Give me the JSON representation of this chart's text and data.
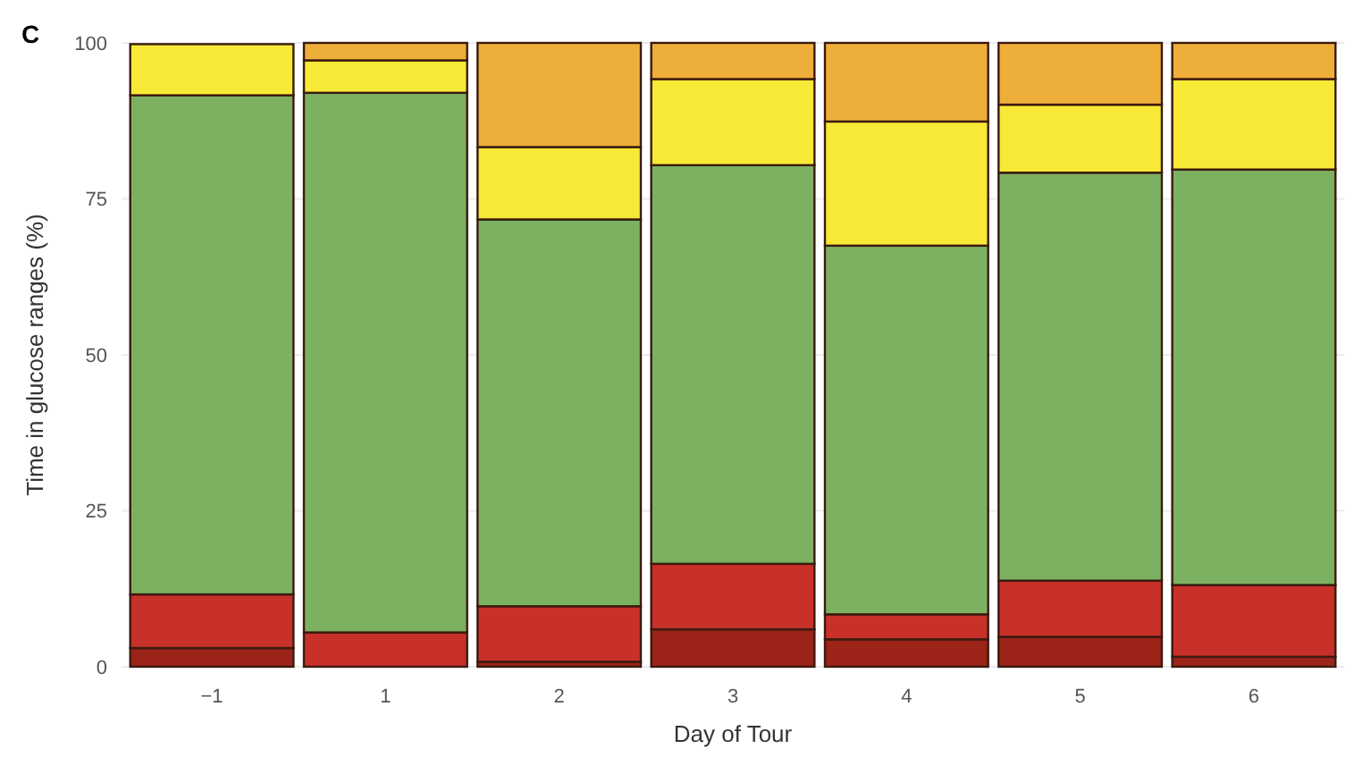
{
  "chart_data": {
    "type": "bar",
    "title": "C",
    "xlabel": "Day of Tour",
    "ylabel": "Time in glucose ranges (%)",
    "categories": [
      "−1",
      "1",
      "2",
      "3",
      "4",
      "5",
      "6"
    ],
    "stacked": true,
    "grid": true,
    "ylim": [
      0,
      100
    ],
    "yticks": [
      0,
      25,
      50,
      75,
      100
    ],
    "series": [
      {
        "color": "#9b2318",
        "values": [
          3,
          0,
          0.8,
          6,
          4.4,
          4.8,
          1.6
        ]
      },
      {
        "color": "#c8302a",
        "values": [
          8.6,
          5.5,
          8.9,
          10.5,
          4,
          9,
          11.5
        ]
      },
      {
        "color": "#7db162",
        "values": [
          80,
          86.5,
          62,
          63.9,
          59.1,
          65.4,
          66.6
        ]
      },
      {
        "color": "#f7e935",
        "values": [
          8.2,
          5.2,
          11.6,
          13.8,
          19.9,
          10.9,
          14.5
        ]
      },
      {
        "color": "#eeae3a",
        "values": [
          0,
          2.8,
          16.7,
          5.8,
          12.6,
          9.9,
          5.8
        ]
      }
    ]
  }
}
